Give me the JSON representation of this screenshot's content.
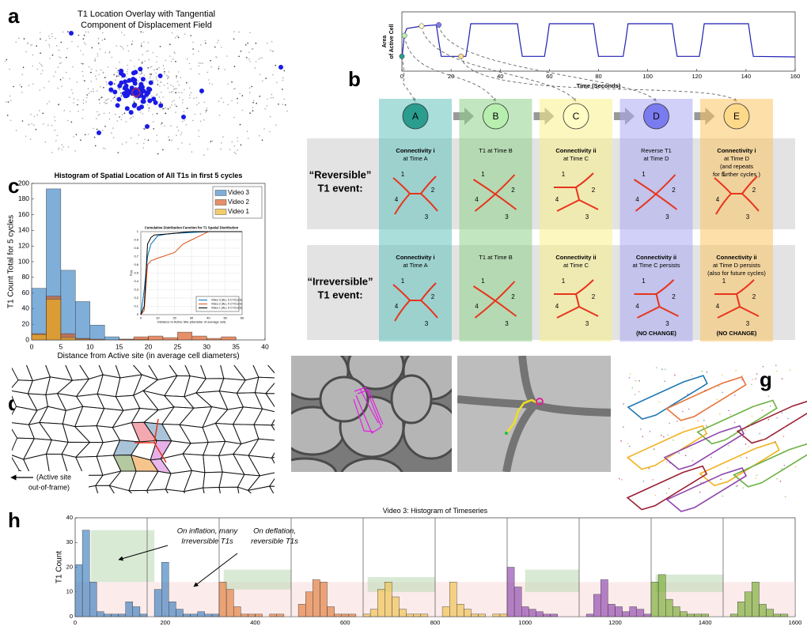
{
  "panel_labels": [
    "a",
    "b",
    "c",
    "d",
    "e",
    "f",
    "g",
    "h"
  ],
  "panel_a": {
    "title": [
      "T1 Location Overlay with Tangential",
      "Component of Displacement Field"
    ]
  },
  "panel_b": {
    "columns": [
      {
        "label": "A",
        "circle": "#2a9d8f",
        "band": "#62c2bd"
      },
      {
        "label": "B",
        "circle": "#b7efae",
        "band": "#8fd18a"
      },
      {
        "label": "C",
        "circle": "#fffcc4",
        "band": "#f7f08a"
      },
      {
        "label": "D",
        "circle": "#7b7bf0",
        "band": "#a9a9f2"
      },
      {
        "label": "E",
        "circle": "#ffd98a",
        "band": "#fbc565"
      }
    ],
    "rows": [
      {
        "label": [
          "“Reversible”",
          "T1 event:"
        ],
        "cells": [
          {
            "heading": "Connectivity i",
            "text": [
              "at Time A"
            ]
          },
          {
            "text": [
              "T1 at Time B"
            ]
          },
          {
            "heading": "Connectivity ii",
            "text": [
              "at Time C"
            ]
          },
          {
            "text": [
              "Reverse T1",
              "at Time D"
            ]
          },
          {
            "heading": "Connectivity i",
            "text": [
              "at Time D",
              "(and repeats",
              "for further cycles )"
            ]
          }
        ]
      },
      {
        "label": [
          "“Irreversible”",
          "T1 event:"
        ],
        "cells": [
          {
            "heading": "Connectivity i",
            "text": [
              "at Time A"
            ]
          },
          {
            "text": [
              "T1 at Time B"
            ]
          },
          {
            "heading": "Connectivity ii",
            "text": [
              "at Time C"
            ]
          },
          {
            "heading": "Connectivity ii",
            "text": [
              "at Time C persists"
            ],
            "note": "(NO CHANGE)"
          },
          {
            "heading": "Connectivity ii",
            "text": [
              "at Time D persists",
              "(also for future cycles)"
            ],
            "note": "(NO CHANGE)"
          }
        ]
      }
    ],
    "edge_labels": [
      "1",
      "2",
      "3",
      "4"
    ]
  },
  "panel_d": {
    "caption": [
      "(Active site",
      "out-of-frame)"
    ]
  },
  "panel_h": {
    "annotations": [
      [
        "On inflation, many",
        "Irreversible T1s"
      ],
      [
        "On deflation,",
        "reversible T1s"
      ]
    ]
  },
  "chart_data": [
    {
      "type": "line",
      "ylabel": [
        "Area",
        "of Active Cell"
      ],
      "xlabel": "Time (Seconds)",
      "xlim": [
        0,
        160
      ],
      "xticks": [
        0,
        20,
        40,
        60,
        80,
        100,
        120,
        140,
        160
      ],
      "ylim": [
        0,
        1
      ],
      "series": [
        {
          "color": "#1f1fb4",
          "x": [
            0,
            1,
            2,
            8,
            14,
            15,
            16,
            26,
            27,
            28,
            47,
            48,
            49,
            58,
            59,
            60,
            78,
            79,
            80,
            90,
            91,
            92,
            110,
            111,
            112,
            121,
            122,
            123,
            141,
            142,
            143,
            160
          ],
          "values": [
            0.2,
            0.62,
            0.72,
            0.76,
            0.78,
            0.5,
            0.25,
            0.25,
            0.5,
            0.8,
            0.8,
            0.5,
            0.25,
            0.25,
            0.5,
            0.8,
            0.8,
            0.5,
            0.25,
            0.25,
            0.5,
            0.8,
            0.8,
            0.5,
            0.25,
            0.25,
            0.5,
            0.8,
            0.8,
            0.5,
            0.25,
            0.24
          ]
        }
      ],
      "markers": {
        "x": [
          0,
          1,
          8,
          15,
          24
        ],
        "values": [
          0.25,
          0.6,
          0.76,
          0.78,
          0.25
        ]
      }
    },
    {
      "type": "histogram",
      "title": "Histogram of Spatial Location of All T1s in first 5 cycles",
      "xlabel": "Distance from Active site (in average cell diameters)",
      "ylabel": "T1 Count Total for 5 cycles",
      "xlim": [
        0,
        40
      ],
      "xticks": [
        0,
        5,
        10,
        15,
        20,
        25,
        30,
        35,
        40
      ],
      "ylim": [
        0,
        200
      ],
      "yticks": [
        0,
        20,
        40,
        60,
        80,
        100,
        120,
        140,
        160,
        180,
        200
      ],
      "legend": "northeast",
      "bins": [
        0,
        2.5,
        5,
        7.5,
        10,
        12.5,
        15,
        17.5,
        20,
        22.5,
        25,
        27.5,
        30,
        32.5,
        35,
        37.5,
        40
      ],
      "series": [
        {
          "name": "Video 3",
          "color": "#3a82c4",
          "values": [
            66,
            193,
            89,
            49,
            19,
            4,
            1,
            1,
            0,
            0,
            0,
            0,
            0,
            0,
            0,
            0
          ]
        },
        {
          "name": "Video 2",
          "color": "#d95319",
          "values": [
            8,
            56,
            8,
            2,
            1,
            0,
            1,
            4,
            5,
            3,
            10,
            5,
            2,
            4,
            0,
            0
          ]
        },
        {
          "name": "Video 1",
          "color": "#edb120",
          "values": [
            7,
            52,
            3,
            1,
            0,
            0,
            0,
            0,
            0,
            0,
            0,
            0,
            0,
            0,
            0,
            0
          ]
        }
      ]
    },
    {
      "type": "cdf",
      "title": "Cumulative Distribution Function for T1 Spatial Distribution",
      "xlabel": "Distance to Active Site (diameter of average cell)",
      "ylabel": "F(x)",
      "xlim": [
        0,
        60
      ],
      "xticks": [
        0,
        10,
        20,
        30,
        40,
        50,
        60
      ],
      "ylim": [
        0,
        1
      ],
      "yticks": [
        0,
        0.1,
        0.2,
        0.3,
        0.4,
        0.5,
        0.6,
        0.7,
        0.8,
        0.9,
        1
      ],
      "grid": true,
      "legend": "southeast",
      "series": [
        {
          "name": "Video 3 (ALL 5 CYCLES)",
          "color": "#0072bd",
          "x": [
            0,
            2,
            4,
            6,
            8,
            10,
            15,
            20,
            30,
            40,
            60
          ],
          "values": [
            0,
            0.3,
            0.7,
            0.85,
            0.9,
            0.95,
            0.97,
            0.98,
            0.99,
            1,
            1
          ]
        },
        {
          "name": "Video 2 (ALL 5 CYCLES)",
          "color": "#d95319",
          "x": [
            0,
            2,
            4,
            6,
            10,
            20,
            25,
            30,
            35,
            40,
            60
          ],
          "values": [
            0,
            0.05,
            0.6,
            0.65,
            0.68,
            0.75,
            0.85,
            0.9,
            0.95,
            1,
            1
          ]
        },
        {
          "name": "Video 1 (ALL 5 CYCLES)",
          "color": "#000000",
          "x": [
            0,
            2,
            4,
            6,
            8,
            15,
            20,
            30,
            60
          ],
          "values": [
            0,
            0.1,
            0.85,
            0.93,
            0.96,
            0.97,
            0.98,
            1,
            1
          ]
        }
      ]
    },
    {
      "type": "histogram",
      "title": "Video 3: Histogram of Timeseries",
      "ylabel": "T1 Count",
      "xlim": [
        0,
        1600
      ],
      "xticks": [
        0,
        200,
        400,
        600,
        800,
        1000,
        1200,
        1400,
        1600
      ],
      "ylim": [
        0,
        40
      ],
      "yticks": [
        0,
        10,
        20,
        30,
        40
      ],
      "series": [
        {
          "color": "#3a7ebf",
          "bins": [
            0,
            16,
            32,
            48,
            64,
            80,
            96,
            112,
            128,
            144,
            160,
            176,
            192,
            208,
            224,
            240,
            256,
            272,
            288,
            304,
            320
          ],
          "values": [
            21,
            35,
            14,
            2,
            1,
            1,
            1,
            6,
            4,
            1,
            0,
            11,
            22,
            6,
            3,
            1,
            1,
            2,
            1,
            1
          ]
        },
        {
          "color": "#e07b39",
          "bins": [
            320,
            336,
            352,
            368,
            384,
            400,
            416,
            432,
            448,
            464,
            480,
            496,
            512,
            528,
            544,
            560,
            576,
            592,
            608,
            624,
            640
          ],
          "values": [
            14,
            11,
            4,
            1,
            1,
            1,
            0,
            1,
            1,
            0,
            0,
            5,
            10,
            15,
            14,
            4,
            1,
            1,
            1,
            0
          ]
        },
        {
          "color": "#f0c24b",
          "bins": [
            640,
            656,
            672,
            688,
            704,
            720,
            736,
            752,
            768,
            784,
            800,
            816,
            832,
            848,
            864,
            880,
            896,
            912,
            928,
            944,
            960
          ],
          "values": [
            1,
            3,
            11,
            14,
            8,
            3,
            1,
            1,
            1,
            0,
            0,
            4,
            14,
            5,
            3,
            1,
            1,
            0,
            1,
            1
          ]
        },
        {
          "color": "#8e44ad",
          "bins": [
            960,
            976,
            992,
            1008,
            1024,
            1040,
            1056,
            1072,
            1088,
            1104,
            1120,
            1136,
            1152,
            1168,
            1184,
            1200,
            1216,
            1232,
            1248,
            1264,
            1280
          ],
          "values": [
            20,
            12,
            4,
            3,
            2,
            1,
            1,
            0,
            0,
            0,
            0,
            1,
            9,
            15,
            5,
            4,
            2,
            4,
            3,
            1
          ]
        },
        {
          "color": "#77ac30",
          "bins": [
            1280,
            1296,
            1312,
            1328,
            1344,
            1360,
            1376,
            1392,
            1408,
            1424,
            1440,
            1456,
            1472,
            1488,
            1504,
            1520,
            1536,
            1552,
            1568,
            1584,
            1600
          ],
          "values": [
            14,
            17,
            7,
            4,
            2,
            1,
            1,
            1,
            0,
            0,
            0,
            1,
            6,
            10,
            14,
            5,
            3,
            1,
            1,
            0
          ]
        }
      ]
    }
  ]
}
